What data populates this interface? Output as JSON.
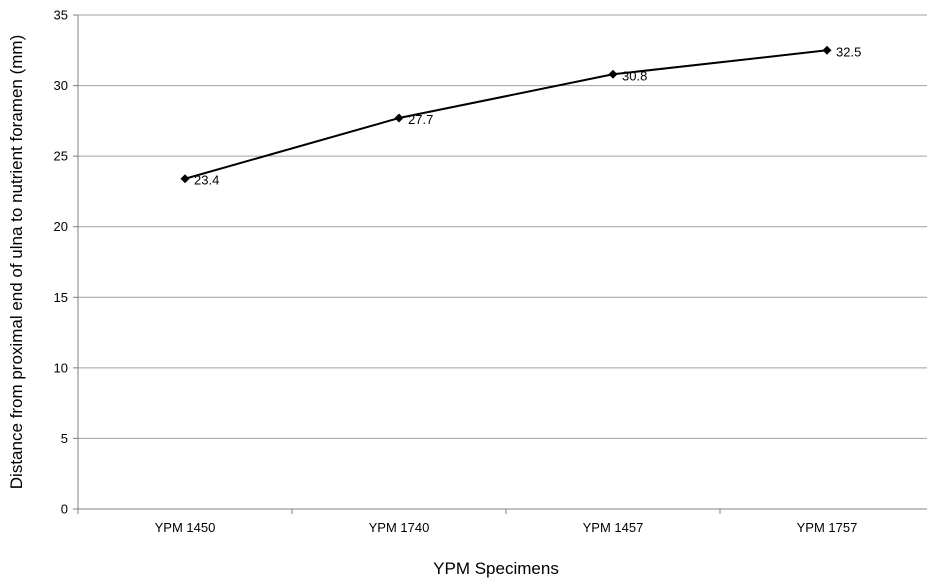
{
  "chart_data": {
    "type": "line",
    "title": "",
    "xlabel": "YPM Specimens",
    "ylabel": "Distance from proximal end of ulna to nutrient foramen (mm)",
    "categories": [
      "YPM 1450",
      "YPM 1740",
      "YPM 1457",
      "YPM 1757"
    ],
    "series": [
      {
        "values": [
          23.4,
          27.7,
          30.8,
          32.5
        ],
        "color": "#000000",
        "marker": "diamond"
      }
    ],
    "data_labels": [
      "23.4",
      "27.7",
      "30.8",
      "32.5"
    ],
    "ylim": [
      0,
      35
    ],
    "yticks": [
      0,
      5,
      10,
      15,
      20,
      25,
      30,
      35
    ],
    "ytick_labels": [
      "0",
      "5",
      "10",
      "15",
      "20",
      "25",
      "30",
      "35"
    ],
    "grid": "horizontal",
    "legend": "none",
    "colors": {
      "line": "#000000",
      "grid": "#a0a0a0",
      "axis": "#808080"
    }
  }
}
